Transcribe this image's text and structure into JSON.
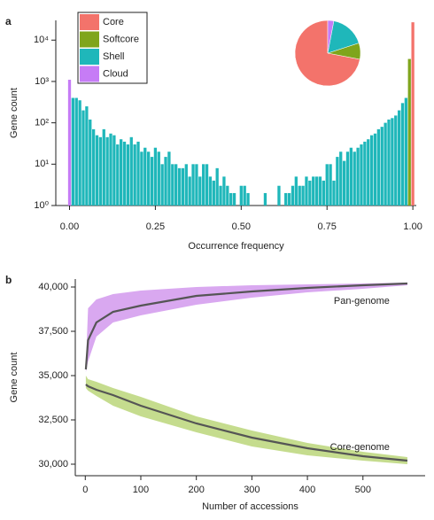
{
  "chart_data": [
    {
      "type": "histogram",
      "panel": "a",
      "xlabel": "Occurrence frequency",
      "ylabel": "Gene count",
      "log_y": true,
      "legend": "top-left",
      "xlim": [
        -0.04,
        1.01
      ],
      "ylim": [
        1,
        30000
      ],
      "xticks": [
        {
          "value": 0,
          "label": "0.00"
        },
        {
          "value": 0.25,
          "label": "0.25"
        },
        {
          "value": 0.5,
          "label": "0.50"
        },
        {
          "value": 0.75,
          "label": "0.75"
        },
        {
          "value": 1,
          "label": "1.00"
        }
      ],
      "yticks": [
        {
          "value": 1,
          "label": "10⁰"
        },
        {
          "value": 10,
          "label": "10¹"
        },
        {
          "value": 100,
          "label": "10²"
        },
        {
          "value": 1000,
          "label": "10³"
        },
        {
          "value": 10000,
          "label": "10⁴"
        }
      ],
      "x": [
        0,
        0.01,
        0.02,
        0.03,
        0.04,
        0.05,
        0.06,
        0.07,
        0.08,
        0.09,
        0.1,
        0.11,
        0.12,
        0.13,
        0.14,
        0.15,
        0.16,
        0.17,
        0.18,
        0.19,
        0.2,
        0.21,
        0.22,
        0.23,
        0.24,
        0.25,
        0.26,
        0.27,
        0.28,
        0.29,
        0.3,
        0.31,
        0.32,
        0.33,
        0.34,
        0.35,
        0.36,
        0.37,
        0.38,
        0.39,
        0.4,
        0.41,
        0.42,
        0.43,
        0.44,
        0.45,
        0.46,
        0.47,
        0.48,
        0.49,
        0.5,
        0.51,
        0.52,
        0.53,
        0.54,
        0.55,
        0.56,
        0.57,
        0.58,
        0.59,
        0.6,
        0.61,
        0.62,
        0.63,
        0.64,
        0.65,
        0.66,
        0.67,
        0.68,
        0.69,
        0.7,
        0.71,
        0.72,
        0.73,
        0.74,
        0.75,
        0.76,
        0.77,
        0.78,
        0.79,
        0.8,
        0.81,
        0.82,
        0.83,
        0.84,
        0.85,
        0.86,
        0.87,
        0.88,
        0.89,
        0.9,
        0.91,
        0.92,
        0.93,
        0.94,
        0.95,
        0.96,
        0.97,
        0.98,
        0.99,
        1
      ],
      "series": [
        {
          "name": "Core",
          "color": "#f3736b",
          "values": [
            null,
            null,
            null,
            null,
            null,
            null,
            null,
            null,
            null,
            null,
            null,
            null,
            null,
            null,
            null,
            null,
            null,
            null,
            null,
            null,
            null,
            null,
            null,
            null,
            null,
            null,
            null,
            null,
            null,
            null,
            null,
            null,
            null,
            null,
            null,
            null,
            null,
            null,
            null,
            null,
            null,
            null,
            null,
            null,
            null,
            null,
            null,
            null,
            null,
            null,
            null,
            null,
            null,
            null,
            null,
            null,
            null,
            null,
            null,
            null,
            null,
            null,
            null,
            null,
            null,
            null,
            null,
            null,
            null,
            null,
            null,
            null,
            null,
            null,
            null,
            null,
            null,
            null,
            null,
            null,
            null,
            null,
            null,
            null,
            null,
            null,
            null,
            null,
            null,
            null,
            null,
            null,
            null,
            null,
            null,
            null,
            null,
            null,
            null,
            null,
            27000
          ]
        },
        {
          "name": "Softcore",
          "color": "#7fa51c",
          "values": [
            null,
            null,
            null,
            null,
            null,
            null,
            null,
            null,
            null,
            null,
            null,
            null,
            null,
            null,
            null,
            null,
            null,
            null,
            null,
            null,
            null,
            null,
            null,
            null,
            null,
            null,
            null,
            null,
            null,
            null,
            null,
            null,
            null,
            null,
            null,
            null,
            null,
            null,
            null,
            null,
            null,
            null,
            null,
            null,
            null,
            null,
            null,
            null,
            null,
            null,
            null,
            null,
            null,
            null,
            null,
            null,
            null,
            null,
            null,
            null,
            null,
            null,
            null,
            null,
            null,
            null,
            null,
            null,
            null,
            null,
            null,
            null,
            null,
            null,
            null,
            null,
            null,
            null,
            null,
            null,
            null,
            null,
            null,
            null,
            null,
            null,
            null,
            null,
            null,
            null,
            null,
            null,
            null,
            null,
            null,
            null,
            null,
            null,
            null,
            3500,
            null
          ]
        },
        {
          "name": "Shell",
          "color": "#1fb7ba",
          "values": [
            null,
            400,
            400,
            350,
            200,
            250,
            120,
            70,
            50,
            45,
            70,
            45,
            55,
            50,
            30,
            40,
            35,
            30,
            45,
            30,
            35,
            20,
            25,
            20,
            15,
            25,
            20,
            10,
            15,
            20,
            10,
            10,
            8,
            8,
            10,
            5,
            10,
            10,
            5,
            10,
            10,
            5,
            4,
            8,
            3,
            5,
            3,
            2,
            2,
            1,
            3,
            3,
            2,
            1,
            1,
            null,
            1,
            2,
            1,
            null,
            1,
            3,
            1,
            2,
            2,
            3,
            5,
            3,
            3,
            5,
            4,
            5,
            5,
            5,
            4,
            10,
            10,
            4,
            15,
            20,
            12,
            20,
            25,
            20,
            25,
            30,
            35,
            40,
            50,
            55,
            70,
            80,
            100,
            120,
            130,
            150,
            200,
            300,
            400,
            null,
            null
          ]
        },
        {
          "name": "Cloud",
          "color": "#c67cf6",
          "values": [
            1100,
            null,
            null,
            null,
            null,
            null,
            null,
            null,
            null,
            null,
            null,
            null,
            null,
            null,
            null,
            null,
            null,
            null,
            null,
            null,
            null,
            null,
            null,
            null,
            null,
            null,
            null,
            null,
            null,
            null,
            null,
            null,
            null,
            null,
            null,
            null,
            null,
            null,
            null,
            null,
            null,
            null,
            null,
            null,
            null,
            null,
            null,
            null,
            null,
            null,
            null,
            null,
            null,
            null,
            null,
            null,
            null,
            null,
            null,
            null,
            null,
            null,
            null,
            null,
            null,
            null,
            null,
            null,
            null,
            null,
            null,
            null,
            null,
            null,
            null,
            null,
            null,
            null,
            null,
            null,
            null,
            null,
            null,
            null,
            null,
            null,
            null,
            null,
            null,
            null,
            null,
            null,
            null,
            null,
            null,
            null,
            null,
            null,
            null,
            null,
            null
          ]
        }
      ]
    },
    {
      "type": "pie",
      "values": [
        72,
        8,
        17,
        3
      ],
      "colors": [
        "#f3736b",
        "#7fa51c",
        "#1fb7ba",
        "#c67cf6"
      ]
    },
    {
      "type": "line",
      "panel": "b",
      "xlabel": "Number of accessions",
      "ylabel": "Gene count",
      "xlim": [
        -18,
        612
      ],
      "ylim": [
        29350,
        40450
      ],
      "xticks": [
        0,
        100,
        200,
        300,
        400,
        500
      ],
      "yticks": [
        {
          "value": 30000,
          "label": "30,000"
        },
        {
          "value": 32500,
          "label": "32,500"
        },
        {
          "value": 35000,
          "label": "35,000"
        },
        {
          "value": 37500,
          "label": "37,500"
        },
        {
          "value": 40000,
          "label": "40,000"
        }
      ],
      "x": [
        1,
        5,
        20,
        50,
        100,
        200,
        300,
        400,
        500,
        580
      ],
      "series": [
        {
          "name": "Pan-genome",
          "color": "#555555",
          "band_color": "#d9a8f0",
          "values": [
            35350,
            37000,
            38000,
            38600,
            38950,
            39500,
            39750,
            39950,
            40100,
            40200
          ],
          "lower": [
            35200,
            35800,
            37200,
            38000,
            38400,
            39000,
            39400,
            39700,
            39900,
            40100
          ],
          "upper": [
            35500,
            38800,
            39300,
            39600,
            39800,
            40000,
            40100,
            40150,
            40200,
            40250
          ]
        },
        {
          "name": "Core-genome",
          "color": "#555555",
          "band_color": "#c5dc8e",
          "values": [
            34500,
            34400,
            34200,
            33900,
            33300,
            32300,
            31500,
            30900,
            30450,
            30200
          ],
          "lower": [
            34300,
            34150,
            33850,
            33300,
            32700,
            31800,
            31000,
            30500,
            30200,
            30000
          ],
          "upper": [
            35000,
            34800,
            34650,
            34300,
            33800,
            32700,
            31900,
            31200,
            30700,
            30400
          ]
        }
      ]
    }
  ]
}
